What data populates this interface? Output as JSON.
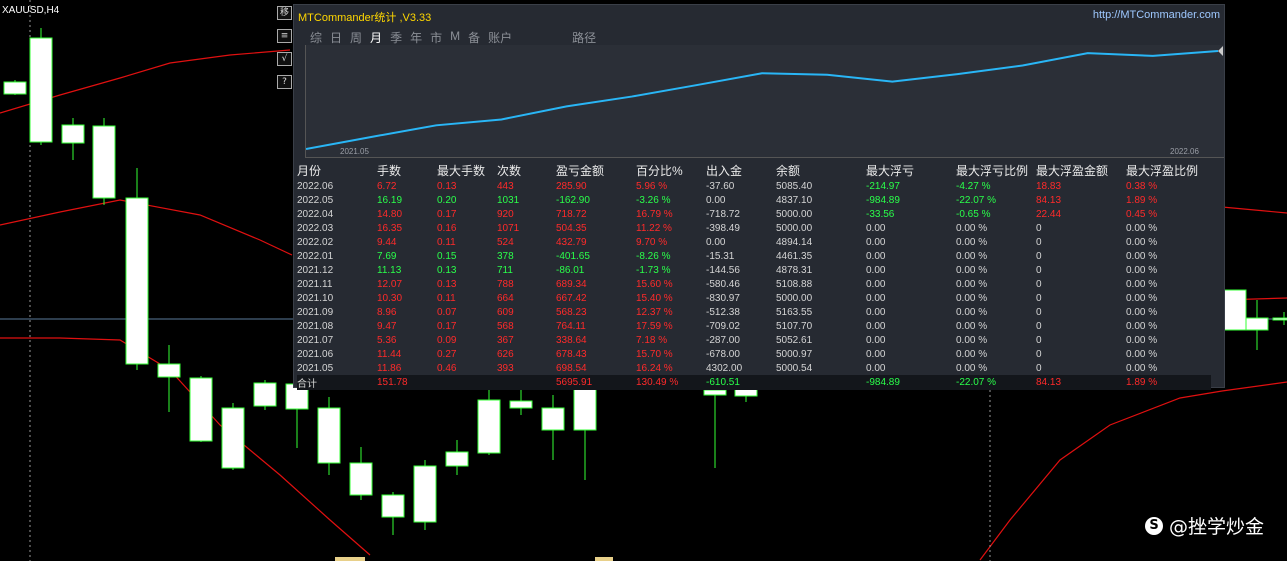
{
  "symbol_label": "XAUUSD,H4",
  "side_buttons": [
    "移",
    "≡",
    "√",
    "?"
  ],
  "panel": {
    "title": "MTCommander统计 ,V3.33",
    "url": "http://MTCommander.com",
    "tabs": [
      {
        "label": "综",
        "active": false
      },
      {
        "label": "日",
        "active": false
      },
      {
        "label": "周",
        "active": false
      },
      {
        "label": "月",
        "active": true
      },
      {
        "label": "季",
        "active": false
      },
      {
        "label": "年",
        "active": false
      },
      {
        "label": "市",
        "active": false
      },
      {
        "label": "M",
        "active": false
      },
      {
        "label": "备",
        "active": false
      },
      {
        "label": "账户",
        "active": false
      }
    ],
    "path_label": "路径",
    "equity_chart": {
      "x_start_label": "2021.05",
      "x_end_label": "2022.06",
      "balance": [
        5000.54,
        5000.97,
        5052.61,
        5107.7,
        5163.55,
        5000.0,
        5108.88,
        4878.31,
        4461.35,
        4894.14,
        5000.0,
        5000.0,
        4837.1,
        5085.4
      ],
      "line_color": "#29b6f6"
    },
    "headers": [
      "月份",
      "手数",
      "最大手数",
      "次数",
      "盈亏金额",
      "百分比%",
      "出入金",
      "余额",
      "最大浮亏",
      "最大浮亏比例",
      "最大浮盈金额",
      "最大浮盈比例"
    ],
    "rows": [
      {
        "month": "2022.06",
        "lots": "6.72",
        "max_lots": "0.13",
        "count": "443",
        "pnl": "285.90",
        "pct": "5.96 %",
        "flow": "-37.60",
        "balance": "5085.40",
        "max_dd": "-214.97",
        "max_dd_pct": "-4.27 %",
        "max_fp": "18.83",
        "max_fp_pct": "0.38 %",
        "profit": true
      },
      {
        "month": "2022.05",
        "lots": "16.19",
        "max_lots": "0.20",
        "count": "1031",
        "pnl": "-162.90",
        "pct": "-3.26 %",
        "flow": "0.00",
        "balance": "4837.10",
        "max_dd": "-984.89",
        "max_dd_pct": "-22.07 %",
        "max_fp": "84.13",
        "max_fp_pct": "1.89 %",
        "profit": false
      },
      {
        "month": "2022.04",
        "lots": "14.80",
        "max_lots": "0.17",
        "count": "920",
        "pnl": "718.72",
        "pct": "16.79 %",
        "flow": "-718.72",
        "balance": "5000.00",
        "max_dd": "-33.56",
        "max_dd_pct": "-0.65 %",
        "max_fp": "22.44",
        "max_fp_pct": "0.45 %",
        "profit": true
      },
      {
        "month": "2022.03",
        "lots": "16.35",
        "max_lots": "0.16",
        "count": "1071",
        "pnl": "504.35",
        "pct": "11.22 %",
        "flow": "-398.49",
        "balance": "5000.00",
        "max_dd": "0.00",
        "max_dd_pct": "0.00 %",
        "max_fp": "0",
        "max_fp_pct": "0.00 %",
        "profit": true
      },
      {
        "month": "2022.02",
        "lots": "9.44",
        "max_lots": "0.11",
        "count": "524",
        "pnl": "432.79",
        "pct": "9.70 %",
        "flow": "0.00",
        "balance": "4894.14",
        "max_dd": "0.00",
        "max_dd_pct": "0.00 %",
        "max_fp": "0",
        "max_fp_pct": "0.00 %",
        "profit": true
      },
      {
        "month": "2022.01",
        "lots": "7.69",
        "max_lots": "0.15",
        "count": "378",
        "pnl": "-401.65",
        "pct": "-8.26 %",
        "flow": "-15.31",
        "balance": "4461.35",
        "max_dd": "0.00",
        "max_dd_pct": "0.00 %",
        "max_fp": "0",
        "max_fp_pct": "0.00 %",
        "profit": false
      },
      {
        "month": "2021.12",
        "lots": "11.13",
        "max_lots": "0.13",
        "count": "711",
        "pnl": "-86.01",
        "pct": "-1.73 %",
        "flow": "-144.56",
        "balance": "4878.31",
        "max_dd": "0.00",
        "max_dd_pct": "0.00 %",
        "max_fp": "0",
        "max_fp_pct": "0.00 %",
        "profit": false
      },
      {
        "month": "2021.11",
        "lots": "12.07",
        "max_lots": "0.13",
        "count": "788",
        "pnl": "689.34",
        "pct": "15.60 %",
        "flow": "-580.46",
        "balance": "5108.88",
        "max_dd": "0.00",
        "max_dd_pct": "0.00 %",
        "max_fp": "0",
        "max_fp_pct": "0.00 %",
        "profit": true
      },
      {
        "month": "2021.10",
        "lots": "10.30",
        "max_lots": "0.11",
        "count": "664",
        "pnl": "667.42",
        "pct": "15.40 %",
        "flow": "-830.97",
        "balance": "5000.00",
        "max_dd": "0.00",
        "max_dd_pct": "0.00 %",
        "max_fp": "0",
        "max_fp_pct": "0.00 %",
        "profit": true
      },
      {
        "month": "2021.09",
        "lots": "8.96",
        "max_lots": "0.07",
        "count": "609",
        "pnl": "568.23",
        "pct": "12.37 %",
        "flow": "-512.38",
        "balance": "5163.55",
        "max_dd": "0.00",
        "max_dd_pct": "0.00 %",
        "max_fp": "0",
        "max_fp_pct": "0.00 %",
        "profit": true
      },
      {
        "month": "2021.08",
        "lots": "9.47",
        "max_lots": "0.17",
        "count": "568",
        "pnl": "764.11",
        "pct": "17.59 %",
        "flow": "-709.02",
        "balance": "5107.70",
        "max_dd": "0.00",
        "max_dd_pct": "0.00 %",
        "max_fp": "0",
        "max_fp_pct": "0.00 %",
        "profit": true
      },
      {
        "month": "2021.07",
        "lots": "5.36",
        "max_lots": "0.09",
        "count": "367",
        "pnl": "338.64",
        "pct": "7.18 %",
        "flow": "-287.00",
        "balance": "5052.61",
        "max_dd": "0.00",
        "max_dd_pct": "0.00 %",
        "max_fp": "0",
        "max_fp_pct": "0.00 %",
        "profit": true
      },
      {
        "month": "2021.06",
        "lots": "11.44",
        "max_lots": "0.27",
        "count": "626",
        "pnl": "678.43",
        "pct": "15.70 %",
        "flow": "-678.00",
        "balance": "5000.97",
        "max_dd": "0.00",
        "max_dd_pct": "0.00 %",
        "max_fp": "0",
        "max_fp_pct": "0.00 %",
        "profit": true
      },
      {
        "month": "2021.05",
        "lots": "11.86",
        "max_lots": "0.46",
        "count": "393",
        "pnl": "698.54",
        "pct": "16.24 %",
        "flow": "4302.00",
        "balance": "5000.54",
        "max_dd": "0.00",
        "max_dd_pct": "0.00 %",
        "max_fp": "0",
        "max_fp_pct": "0.00 %",
        "profit": true
      }
    ],
    "total": {
      "label": "合计",
      "lots": "151.78",
      "pnl": "5695.91",
      "pct": "130.49 %",
      "flow": "-610.51",
      "max_dd": "-984.89",
      "max_dd_pct": "-22.07 %",
      "max_fp": "84.13",
      "max_fp_pct": "1.89 %"
    }
  },
  "watermark": {
    "icon": "weibo-icon",
    "text": "@挫学炒金"
  },
  "colors": {
    "profit": "#ff2a2a",
    "loss": "#2aff4a",
    "title": "#ffd700",
    "url": "#9ec8ff",
    "candle_border": "#33ff33",
    "band": "#e01010"
  }
}
